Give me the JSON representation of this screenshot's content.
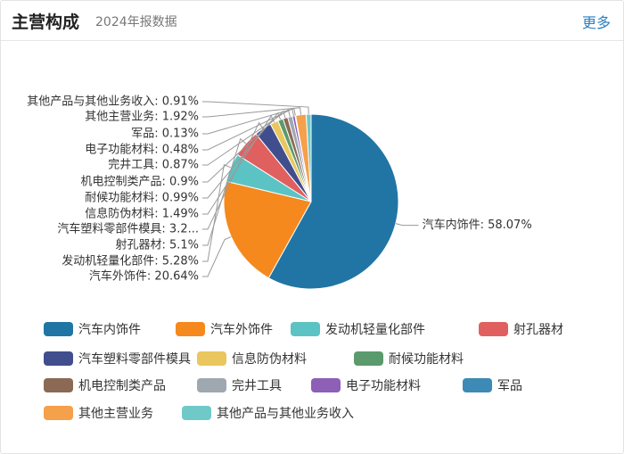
{
  "header": {
    "title": "主营构成",
    "subtitle": "2024年报数据",
    "more_label": "更多"
  },
  "chart_data": {
    "type": "pie",
    "labels": [
      "汽车内饰件",
      "汽车外饰件",
      "发动机轻量化部件",
      "射孔器材",
      "汽车塑料零部件模具",
      "信息防伪材料",
      "耐候功能材料",
      "机电控制类产品",
      "完井工具",
      "电子功能材料",
      "军品",
      "其他主营业务",
      "其他产品与其他业务收入"
    ],
    "values": [
      58.07,
      20.64,
      5.28,
      5.1,
      3.2,
      1.49,
      0.99,
      0.9,
      0.87,
      0.48,
      0.13,
      1.92,
      0.91
    ],
    "slice_labels": [
      "汽车内饰件: 58.07%",
      "汽车外饰件: 20.64%",
      "发动机轻量化部件: 5.28%",
      "射孔器材: 5.1%",
      "汽车塑料零部件模具: 3.2...",
      "信息防伪材料: 1.49%",
      "耐候功能材料: 0.99%",
      "机电控制类产品: 0.9%",
      "完井工具: 0.87%",
      "电子功能材料: 0.48%",
      "军品: 0.13%",
      "其他主营业务: 1.92%",
      "其他产品与其他业务收入: 0.91%"
    ],
    "colors": [
      "#2175a4",
      "#f5891e",
      "#5bc3c3",
      "#e0605f",
      "#404e8d",
      "#e9c75e",
      "#5b9a6c",
      "#8a6a55",
      "#9fa7b0",
      "#8d5fb6",
      "#3c8ab5",
      "#f5a04a",
      "#6fc9c9"
    ],
    "legend_position": "bottom"
  }
}
